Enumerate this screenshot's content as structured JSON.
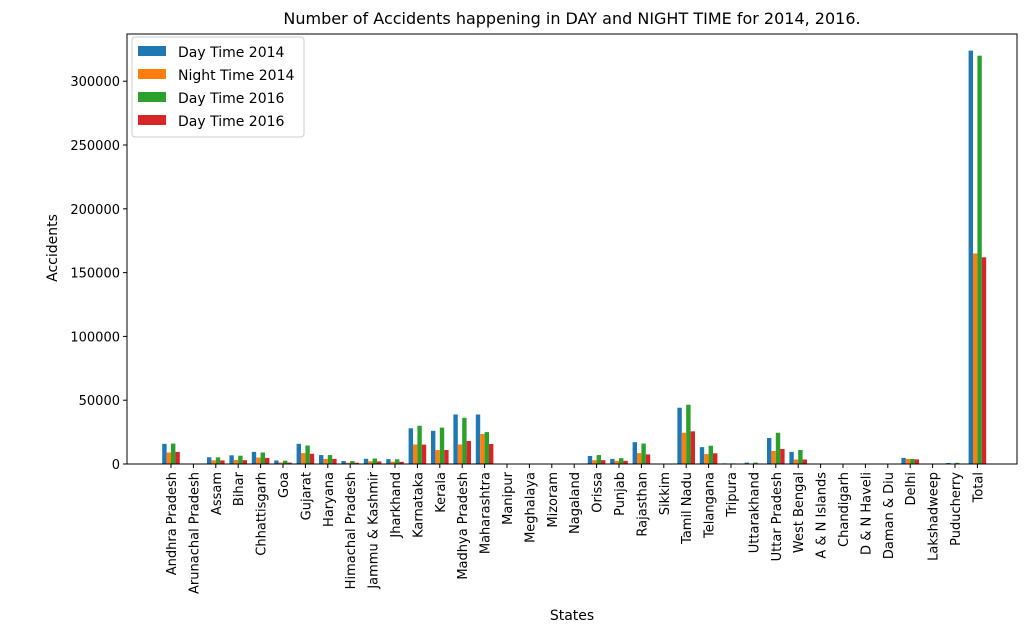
{
  "chart_data": {
    "type": "bar",
    "title": "Number of Accidents happening in DAY and NIGHT TIME for 2014, 2016.",
    "xlabel": "States",
    "ylabel": "Accidents",
    "ylim": [
      0,
      337000
    ],
    "yticks": [
      0,
      50000,
      100000,
      150000,
      200000,
      250000,
      300000
    ],
    "legend_position": "top-left",
    "grid": false,
    "colors": [
      "#1f77b4",
      "#ff7f0e",
      "#2ca02c",
      "#d62728"
    ],
    "categories": [
      "Andhra Pradesh",
      "Arunachal Pradesh",
      "Assam",
      "Bihar",
      "Chhattisgarh",
      "Goa",
      "Gujarat",
      "Haryana",
      "Himachal Pradesh",
      "Jammu & Kashmir",
      "Jharkhand",
      "Karnataka",
      "Kerala",
      "Madhya Pradesh",
      "Maharashtra",
      "Manipur",
      "Meghalaya",
      "Mizoram",
      "Nagaland",
      "Orissa",
      "Punjab",
      "Rajasthan",
      "Sikkim",
      "Tamil Nadu",
      "Telangana",
      "Tripura",
      "Uttarakhand",
      "Uttar Pradesh",
      "West Bengal",
      "A & N Islands",
      "Chandigarh",
      "D & N Haveli",
      "Daman & Diu",
      "Delhi",
      "Lakshadweep",
      "Puducherry",
      "Total"
    ],
    "series": [
      {
        "name": "Day Time 2014",
        "values": [
          15800,
          150,
          5300,
          6800,
          9500,
          2800,
          15800,
          7000,
          2300,
          4100,
          3800,
          28000,
          26000,
          38800,
          38800,
          300,
          200,
          50,
          100,
          6300,
          4000,
          17100,
          150,
          44100,
          13200,
          500,
          1100,
          20400,
          9500,
          150,
          200,
          80,
          50,
          4800,
          5,
          800,
          324000
        ]
      },
      {
        "name": "Night Time 2014",
        "values": [
          9000,
          50,
          2900,
          3200,
          5100,
          1200,
          8500,
          4000,
          1000,
          2200,
          1800,
          15300,
          11000,
          15300,
          23500,
          100,
          100,
          30,
          50,
          3000,
          2500,
          8500,
          50,
          24500,
          7800,
          200,
          400,
          10200,
          3500,
          50,
          100,
          50,
          30,
          4000,
          2,
          300,
          165000
        ]
      },
      {
        "name": "Day Time 2016",
        "values": [
          16000,
          150,
          5200,
          6500,
          9000,
          2600,
          14500,
          7000,
          2300,
          4300,
          3700,
          30000,
          28500,
          36200,
          25000,
          300,
          200,
          50,
          100,
          7000,
          4600,
          16000,
          150,
          46500,
          14300,
          500,
          1100,
          24500,
          11000,
          150,
          200,
          80,
          50,
          4000,
          5,
          900,
          320000
        ]
      },
      {
        "name": "Day Time 2016",
        "values": [
          9500,
          50,
          2800,
          3000,
          4800,
          1100,
          8000,
          4000,
          1000,
          2000,
          1700,
          15200,
          11000,
          18000,
          15700,
          100,
          100,
          30,
          50,
          3000,
          2500,
          7500,
          50,
          25600,
          8400,
          200,
          400,
          11800,
          3500,
          50,
          100,
          50,
          30,
          3600,
          2,
          400,
          162000
        ]
      }
    ]
  }
}
